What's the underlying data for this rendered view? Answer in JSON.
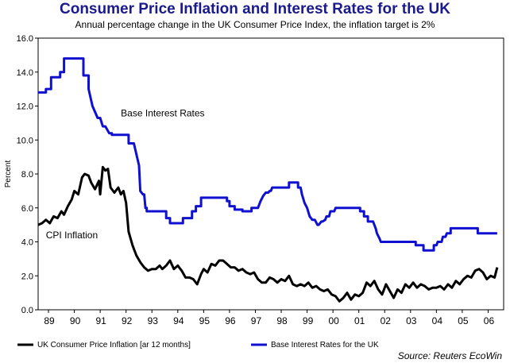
{
  "chart_data": {
    "type": "line",
    "title": "Consumer Price Inflation and Interest Rates for the UK",
    "subtitle": "Annual percentage change in the UK Consumer Price Index, the inflation target is 2%",
    "ylabel": "Percent",
    "xlabel": "",
    "ylim": [
      0,
      16
    ],
    "xlim": [
      1988.6,
      2006.6
    ],
    "yticks": [
      "0.0",
      "2.0",
      "4.0",
      "6.0",
      "8.0",
      "10.0",
      "12.0",
      "14.0",
      "16.0"
    ],
    "xticks": [
      {
        "label": "89",
        "x": 1989.0
      },
      {
        "label": "90",
        "x": 1990.0
      },
      {
        "label": "91",
        "x": 1991.0
      },
      {
        "label": "92",
        "x": 1992.0
      },
      {
        "label": "93",
        "x": 1993.0
      },
      {
        "label": "94",
        "x": 1994.0
      },
      {
        "label": "95",
        "x": 1995.0
      },
      {
        "label": "96",
        "x": 1996.0
      },
      {
        "label": "97",
        "x": 1997.0
      },
      {
        "label": "98",
        "x": 1998.0
      },
      {
        "label": "99",
        "x": 1999.0
      },
      {
        "label": "00",
        "x": 2000.0
      },
      {
        "label": "01",
        "x": 2001.0
      },
      {
        "label": "02",
        "x": 2002.0
      },
      {
        "label": "03",
        "x": 2003.0
      },
      {
        "label": "04",
        "x": 2004.0
      },
      {
        "label": "05",
        "x": 2005.0
      },
      {
        "label": "06",
        "x": 2006.0
      }
    ],
    "grid": false,
    "legend_position": "bottom",
    "annotations": [
      {
        "text": "Base Interest Rates",
        "x": 1991.8,
        "y": 11.4
      },
      {
        "text": "CPI Inflation",
        "x": 1988.9,
        "y": 4.2
      }
    ],
    "source": "Source: Reuters EcoWin",
    "series": [
      {
        "name": "UK Consumer Price Inflation [ar 12 months]",
        "color": "#000000",
        "x": [
          1988.6,
          1988.75,
          1988.9,
          1989.05,
          1989.2,
          1989.35,
          1989.5,
          1989.6,
          1989.75,
          1989.9,
          1990.0,
          1990.15,
          1990.3,
          1990.4,
          1990.55,
          1990.65,
          1990.8,
          1990.95,
          1991.0,
          1991.1,
          1991.2,
          1991.3,
          1991.4,
          1991.55,
          1991.7,
          1991.8,
          1991.9,
          1992.0,
          1992.1,
          1992.25,
          1992.4,
          1992.55,
          1992.7,
          1992.85,
          1993.0,
          1993.15,
          1993.3,
          1993.4,
          1993.55,
          1993.7,
          1993.85,
          1994.0,
          1994.15,
          1994.3,
          1994.45,
          1994.6,
          1994.75,
          1994.9,
          1995.0,
          1995.15,
          1995.3,
          1995.45,
          1995.6,
          1995.75,
          1995.9,
          1996.05,
          1996.2,
          1996.35,
          1996.5,
          1996.65,
          1996.8,
          1996.95,
          1997.1,
          1997.25,
          1997.4,
          1997.55,
          1997.7,
          1997.85,
          1998.0,
          1998.15,
          1998.3,
          1998.45,
          1998.6,
          1998.75,
          1998.9,
          1999.05,
          1999.2,
          1999.35,
          1999.5,
          1999.65,
          1999.8,
          1999.95,
          2000.1,
          2000.25,
          2000.4,
          2000.55,
          2000.7,
          2000.85,
          2001.0,
          2001.15,
          2001.3,
          2001.45,
          2001.6,
          2001.75,
          2001.9,
          2002.05,
          2002.2,
          2002.35,
          2002.5,
          2002.65,
          2002.8,
          2002.95,
          2003.1,
          2003.25,
          2003.4,
          2003.55,
          2003.7,
          2003.85,
          2004.0,
          2004.15,
          2004.3,
          2004.45,
          2004.6,
          2004.75,
          2004.9,
          2005.05,
          2005.2,
          2005.35,
          2005.5,
          2005.65,
          2005.8,
          2005.95,
          2006.1,
          2006.25,
          2006.35
        ],
        "values": [
          5.0,
          5.1,
          5.3,
          5.1,
          5.5,
          5.4,
          5.8,
          5.6,
          6.1,
          6.5,
          7.0,
          6.8,
          7.8,
          8.0,
          7.9,
          7.5,
          7.1,
          7.6,
          6.8,
          8.4,
          8.2,
          8.3,
          7.2,
          6.9,
          7.2,
          6.8,
          7.0,
          6.3,
          4.6,
          3.8,
          3.2,
          2.8,
          2.5,
          2.3,
          2.4,
          2.4,
          2.6,
          2.4,
          2.6,
          2.9,
          2.4,
          2.6,
          2.3,
          1.9,
          1.9,
          1.8,
          1.5,
          2.1,
          2.4,
          2.2,
          2.7,
          2.6,
          2.9,
          2.9,
          2.7,
          2.5,
          2.5,
          2.3,
          2.4,
          2.2,
          2.1,
          2.2,
          1.8,
          1.6,
          1.6,
          1.9,
          1.8,
          1.6,
          1.8,
          1.7,
          2.0,
          1.5,
          1.4,
          1.5,
          1.4,
          1.6,
          1.3,
          1.4,
          1.2,
          1.1,
          1.2,
          0.9,
          0.8,
          0.5,
          0.7,
          1.0,
          0.6,
          0.9,
          0.8,
          1.0,
          1.6,
          1.4,
          1.7,
          1.2,
          0.9,
          1.5,
          1.1,
          0.7,
          1.2,
          1.0,
          1.5,
          1.3,
          1.6,
          1.3,
          1.5,
          1.4,
          1.2,
          1.3,
          1.3,
          1.4,
          1.2,
          1.5,
          1.3,
          1.7,
          1.5,
          1.8,
          2.0,
          1.9,
          2.3,
          2.4,
          2.2,
          1.8,
          2.0,
          1.9,
          2.5
        ]
      },
      {
        "name": "Base Interest Rates for the UK",
        "color": "#1010d0",
        "x": [
          1988.6,
          1988.9,
          1988.9,
          1989.1,
          1989.1,
          1989.45,
          1989.45,
          1989.6,
          1989.6,
          1990.35,
          1990.35,
          1990.55,
          1990.55,
          1990.7,
          1990.9,
          1991.0,
          1991.1,
          1991.2,
          1991.35,
          1991.45,
          1991.45,
          1991.55,
          1991.55,
          1991.7,
          1991.7,
          1992.1,
          1992.1,
          1992.3,
          1992.5,
          1992.55,
          1992.65,
          1992.7,
          1992.75,
          1992.8,
          1992.8,
          1993.55,
          1993.55,
          1993.7,
          1993.7,
          1994.2,
          1994.2,
          1994.55,
          1994.55,
          1994.7,
          1994.7,
          1994.9,
          1994.9,
          1995.9,
          1995.9,
          1996.0,
          1996.0,
          1996.2,
          1996.2,
          1996.5,
          1996.5,
          1996.85,
          1996.85,
          1997.1,
          1997.2,
          1997.3,
          1997.4,
          1997.5,
          1997.55,
          1997.6,
          1997.65,
          1997.8,
          1997.8,
          1998.3,
          1998.3,
          1998.65,
          1998.65,
          1998.75,
          1998.8,
          1998.9,
          1999.0,
          1999.1,
          1999.2,
          1999.3,
          1999.4,
          1999.45,
          1999.55,
          1999.6,
          1999.7,
          1999.75,
          1999.85,
          1999.9,
          2000.05,
          2000.1,
          2000.1,
          2001.05,
          2001.05,
          2001.2,
          2001.2,
          2001.35,
          2001.35,
          2001.55,
          2001.65,
          2001.7,
          2001.8,
          2001.85,
          2001.9,
          2002.9,
          2002.9,
          2003.2,
          2003.2,
          2003.5,
          2003.5,
          2003.9,
          2003.9,
          2004.0,
          2004.05,
          2004.2,
          2004.25,
          2004.35,
          2004.4,
          2004.55,
          2004.55,
          2005.6,
          2005.6,
          2006.35
        ],
        "values": [
          12.8,
          12.8,
          13.0,
          13.0,
          13.7,
          13.7,
          14.0,
          14.0,
          14.8,
          14.8,
          13.8,
          13.8,
          13.0,
          12.0,
          11.3,
          11.3,
          10.8,
          10.8,
          10.4,
          10.4,
          10.3,
          10.3,
          10.3,
          10.3,
          10.3,
          10.3,
          9.8,
          9.8,
          8.5,
          7.0,
          6.8,
          6.8,
          6.0,
          6.0,
          5.8,
          5.8,
          5.4,
          5.4,
          5.1,
          5.1,
          5.4,
          5.4,
          5.8,
          5.8,
          6.1,
          6.1,
          6.6,
          6.6,
          6.4,
          6.4,
          6.1,
          6.1,
          5.9,
          5.9,
          5.8,
          5.8,
          6.0,
          6.0,
          6.4,
          6.7,
          6.9,
          6.9,
          7.0,
          7.0,
          7.2,
          7.2,
          7.2,
          7.2,
          7.5,
          7.5,
          7.2,
          7.2,
          6.8,
          6.3,
          6.0,
          5.5,
          5.3,
          5.3,
          5.0,
          5.0,
          5.2,
          5.2,
          5.3,
          5.5,
          5.5,
          5.8,
          5.8,
          6.0,
          6.0,
          6.0,
          5.8,
          5.8,
          5.5,
          5.5,
          5.2,
          5.2,
          4.8,
          4.5,
          4.2,
          4.0,
          4.0,
          4.0,
          4.0,
          4.0,
          3.8,
          3.8,
          3.5,
          3.5,
          3.8,
          3.8,
          4.0,
          4.0,
          4.3,
          4.3,
          4.5,
          4.5,
          4.8,
          4.8,
          4.5,
          4.5
        ]
      }
    ]
  }
}
